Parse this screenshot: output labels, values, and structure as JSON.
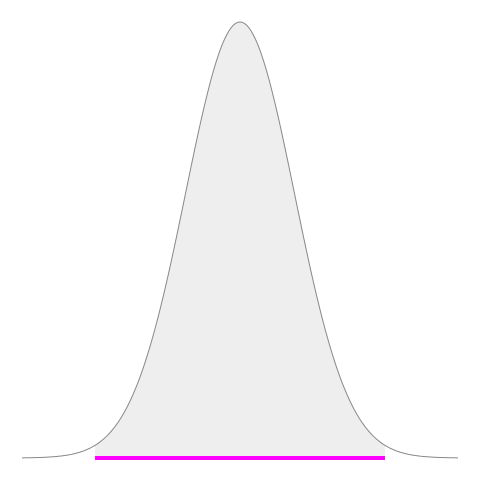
{
  "chart_data": {
    "type": "area",
    "distribution": "normal",
    "mean": 0,
    "std_dev": 1,
    "x_range": [
      -4,
      4
    ],
    "highlighted_interval": [
      -2.66,
      2.66
    ],
    "title": "",
    "xlabel": "",
    "ylabel": "",
    "grid": false,
    "colors": {
      "curve_stroke": "#888888",
      "curve_fill": "#eeeeee",
      "highlight": "#ff00ff",
      "background": "#ffffff"
    }
  }
}
